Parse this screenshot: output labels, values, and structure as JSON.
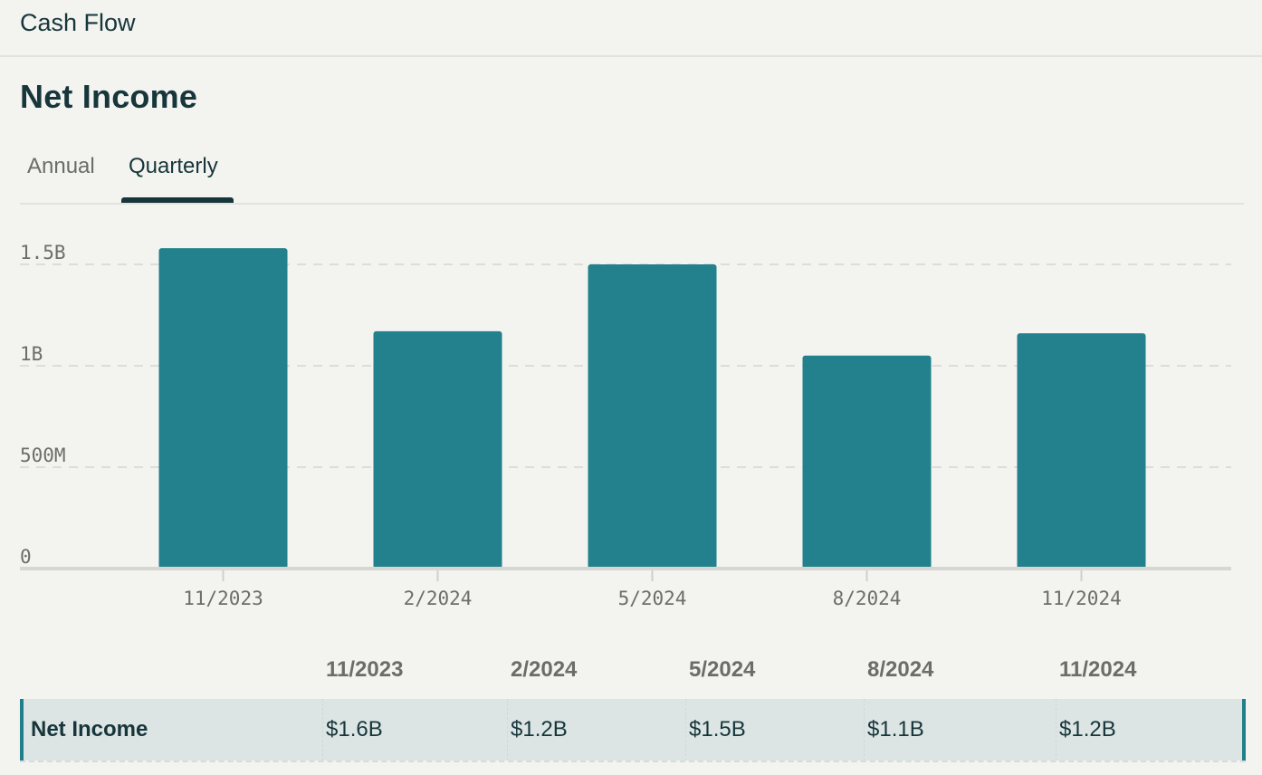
{
  "header": {
    "title": "Cash Flow"
  },
  "section": {
    "title": "Net Income"
  },
  "tabs": [
    {
      "label": "Annual",
      "active": false
    },
    {
      "label": "Quarterly",
      "active": true
    }
  ],
  "colors": {
    "bar": "#22818d",
    "text": "#17363b",
    "muted": "#6b6d6a",
    "grid": "#dcdcd8",
    "row_bg": "#dce5e4"
  },
  "chart_data": {
    "type": "bar",
    "categories": [
      "11/2023",
      "2/2024",
      "5/2024",
      "8/2024",
      "11/2024"
    ],
    "values": [
      1.58,
      1.17,
      1.5,
      1.05,
      1.16
    ],
    "unit": "B",
    "ylim": [
      0,
      1.58
    ],
    "yticks": [
      {
        "value": 0,
        "label": "0"
      },
      {
        "value": 0.5,
        "label": "500M"
      },
      {
        "value": 1.0,
        "label": "1B"
      },
      {
        "value": 1.5,
        "label": "1.5B"
      }
    ],
    "grid": true,
    "legend": "none"
  },
  "table": {
    "columns": [
      "11/2023",
      "2/2024",
      "5/2024",
      "8/2024",
      "11/2024"
    ],
    "rows": [
      {
        "label": "Net Income",
        "values": [
          "$1.6B",
          "$1.2B",
          "$1.5B",
          "$1.1B",
          "$1.2B"
        ]
      }
    ]
  }
}
